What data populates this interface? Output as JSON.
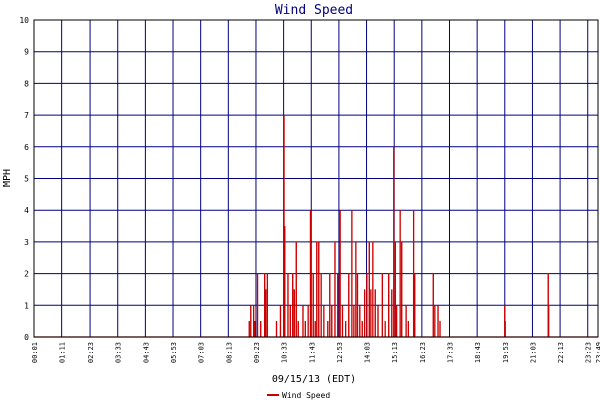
{
  "chart_data": {
    "type": "line",
    "title": "Wind Speed",
    "xlabel": "09/15/13 (EDT)",
    "ylabel": "MPH",
    "ylim": [
      0,
      10
    ],
    "yticks": [
      "0",
      "1",
      "2",
      "3",
      "4",
      "5",
      "6",
      "7",
      "8",
      "9",
      "10"
    ],
    "xticks": [
      "00:01",
      "01:11",
      "02:23",
      "03:33",
      "04:43",
      "05:53",
      "07:03",
      "08:13",
      "09:23",
      "10:33",
      "11:43",
      "12:53",
      "14:03",
      "15:13",
      "16:23",
      "17:33",
      "18:43",
      "19:53",
      "21:03",
      "22:13",
      "23:23",
      "23:49"
    ],
    "grid": true,
    "legend_position": "bottom-center",
    "colors": {
      "series": "#cc0000",
      "grid": "#00007f",
      "axis": "#000000",
      "text": "#000000",
      "title": "#00007f"
    },
    "x_range": [
      "00:01",
      "23:49"
    ],
    "series": [
      {
        "name": "Wind Speed",
        "points": [
          [
            "09:06",
            0.5
          ],
          [
            "09:10",
            1
          ],
          [
            "09:17",
            1
          ],
          [
            "09:20",
            0.5
          ],
          [
            "09:27",
            2
          ],
          [
            "09:35",
            0.5
          ],
          [
            "09:45",
            2
          ],
          [
            "09:48",
            1.5
          ],
          [
            "09:52",
            2
          ],
          [
            "10:15",
            0.5
          ],
          [
            "10:25",
            1
          ],
          [
            "10:34",
            7
          ],
          [
            "10:36",
            3.5
          ],
          [
            "10:44",
            2
          ],
          [
            "10:50",
            1
          ],
          [
            "10:56",
            2
          ],
          [
            "11:00",
            1.5
          ],
          [
            "11:05",
            3
          ],
          [
            "11:10",
            0.5
          ],
          [
            "11:22",
            1
          ],
          [
            "11:28",
            0.5
          ],
          [
            "11:35",
            1
          ],
          [
            "11:41",
            4
          ],
          [
            "11:48",
            2
          ],
          [
            "11:53",
            0.5
          ],
          [
            "11:57",
            3
          ],
          [
            "12:02",
            3
          ],
          [
            "12:08",
            2
          ],
          [
            "12:15",
            1
          ],
          [
            "12:25",
            0.5
          ],
          [
            "12:30",
            2
          ],
          [
            "12:35",
            1
          ],
          [
            "12:43",
            3
          ],
          [
            "12:50",
            2
          ],
          [
            "12:56",
            4
          ],
          [
            "13:02",
            1
          ],
          [
            "13:10",
            0.5
          ],
          [
            "13:18",
            2
          ],
          [
            "13:26",
            4
          ],
          [
            "13:31",
            1
          ],
          [
            "13:36",
            3
          ],
          [
            "13:40",
            2
          ],
          [
            "13:46",
            1
          ],
          [
            "13:52",
            0.5
          ],
          [
            "13:58",
            1.5
          ],
          [
            "14:04",
            2
          ],
          [
            "14:10",
            3
          ],
          [
            "14:14",
            1.5
          ],
          [
            "14:19",
            3
          ],
          [
            "14:25",
            1.5
          ],
          [
            "14:32",
            1
          ],
          [
            "14:43",
            2
          ],
          [
            "14:50",
            0.5
          ],
          [
            "14:59",
            2
          ],
          [
            "15:07",
            1.5
          ],
          [
            "15:12",
            6
          ],
          [
            "15:16",
            3
          ],
          [
            "15:19",
            1
          ],
          [
            "15:28",
            4
          ],
          [
            "15:32",
            3
          ],
          [
            "15:43",
            1
          ],
          [
            "15:49",
            0.5
          ],
          [
            "16:02",
            4
          ],
          [
            "16:05",
            2
          ],
          [
            "16:52",
            2
          ],
          [
            "16:56",
            1
          ],
          [
            "17:04",
            1
          ],
          [
            "17:09",
            0.5
          ],
          [
            "19:53",
            1
          ],
          [
            "19:54",
            0.5
          ],
          [
            "21:43",
            2
          ],
          [
            "21:44",
            1
          ]
        ]
      }
    ]
  }
}
